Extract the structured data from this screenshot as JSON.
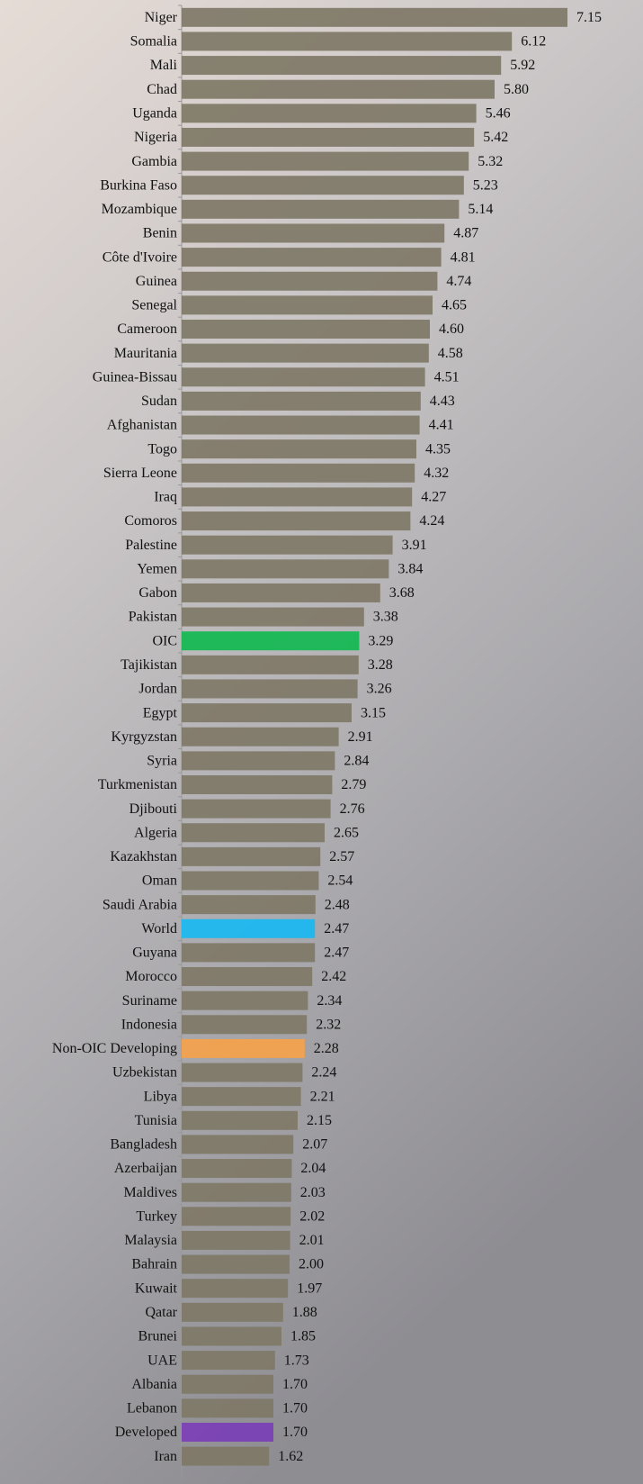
{
  "chart_data": {
    "type": "bar",
    "orientation": "horizontal",
    "categories": [
      "Niger",
      "Somalia",
      "Mali",
      "Chad",
      "Uganda",
      "Nigeria",
      "Gambia",
      "Burkina Faso",
      "Mozambique",
      "Benin",
      "Côte d'Ivoire",
      "Guinea",
      "Senegal",
      "Cameroon",
      "Mauritania",
      "Guinea-Bissau",
      "Sudan",
      "Afghanistan",
      "Togo",
      "Sierra Leone",
      "Iraq",
      "Comoros",
      "Palestine",
      "Yemen",
      "Gabon",
      "Pakistan",
      "OIC",
      "Tajikistan",
      "Jordan",
      "Egypt",
      "Kyrgyzstan",
      "Syria",
      "Turkmenistan",
      "Djibouti",
      "Algeria",
      "Kazakhstan",
      "Oman",
      "Saudi Arabia",
      "World",
      "Guyana",
      "Morocco",
      "Suriname",
      "Indonesia",
      "Non-OIC Developing",
      "Uzbekistan",
      "Libya",
      "Tunisia",
      "Bangladesh",
      "Azerbaijan",
      "Maldives",
      "Turkey",
      "Malaysia",
      "Bahrain",
      "Kuwait",
      "Qatar",
      "Brunei",
      "UAE",
      "Albania",
      "Lebanon",
      "Developed",
      "Iran"
    ],
    "values": [
      7.15,
      6.12,
      5.92,
      5.8,
      5.46,
      5.42,
      5.32,
      5.23,
      5.14,
      4.87,
      4.81,
      4.74,
      4.65,
      4.6,
      4.58,
      4.51,
      4.43,
      4.41,
      4.35,
      4.32,
      4.27,
      4.24,
      3.91,
      3.84,
      3.68,
      3.38,
      3.29,
      3.28,
      3.26,
      3.15,
      2.91,
      2.84,
      2.79,
      2.76,
      2.65,
      2.57,
      2.54,
      2.48,
      2.47,
      2.47,
      2.42,
      2.34,
      2.32,
      2.28,
      2.24,
      2.21,
      2.15,
      2.07,
      2.04,
      2.03,
      2.02,
      2.01,
      2.0,
      1.97,
      1.88,
      1.85,
      1.73,
      1.7,
      1.7,
      1.7,
      1.62
    ],
    "value_labels": [
      "7.15",
      "6.12",
      "5.92",
      "5.80",
      "5.46",
      "5.42",
      "5.32",
      "5.23",
      "5.14",
      "4.87",
      "4.81",
      "4.74",
      "4.65",
      "4.60",
      "4.58",
      "4.51",
      "4.43",
      "4.41",
      "4.35",
      "4.32",
      "4.27",
      "4.24",
      "3.91",
      "3.84",
      "3.68",
      "3.38",
      "3.29",
      "3.28",
      "3.26",
      "3.15",
      "2.91",
      "2.84",
      "2.79",
      "2.76",
      "2.65",
      "2.57",
      "2.54",
      "2.48",
      "2.47",
      "2.47",
      "2.42",
      "2.34",
      "2.32",
      "2.28",
      "2.24",
      "2.21",
      "2.15",
      "2.07",
      "2.04",
      "2.03",
      "2.02",
      "2.01",
      "2.00",
      "1.97",
      "1.88",
      "1.85",
      "1.73",
      "1.70",
      "1.70",
      "1.70",
      "1.62"
    ],
    "colors": [
      "#7f7867",
      "#7f7867",
      "#7f7867",
      "#7f7867",
      "#7f7867",
      "#7f7867",
      "#7f7867",
      "#7f7867",
      "#7f7867",
      "#7f7867",
      "#7f7867",
      "#7f7867",
      "#7f7867",
      "#7f7867",
      "#7f7867",
      "#7f7867",
      "#7f7867",
      "#7f7867",
      "#7f7867",
      "#7f7867",
      "#7f7867",
      "#7f7867",
      "#7f7867",
      "#7f7867",
      "#7f7867",
      "#7f7867",
      "#12b851",
      "#7f7867",
      "#7f7867",
      "#7f7867",
      "#7f7867",
      "#7f7867",
      "#7f7867",
      "#7f7867",
      "#7f7867",
      "#7f7867",
      "#7f7867",
      "#7f7867",
      "#18b8f2",
      "#7f7867",
      "#7f7867",
      "#7f7867",
      "#7f7867",
      "#f6a24c",
      "#7f7867",
      "#7f7867",
      "#7f7867",
      "#7f7867",
      "#7f7867",
      "#7f7867",
      "#7f7867",
      "#7f7867",
      "#7f7867",
      "#7f7867",
      "#7f7867",
      "#7f7867",
      "#7f7867",
      "#7f7867",
      "#7f7867",
      "#7b3fb6",
      "#7f7867"
    ]
  }
}
